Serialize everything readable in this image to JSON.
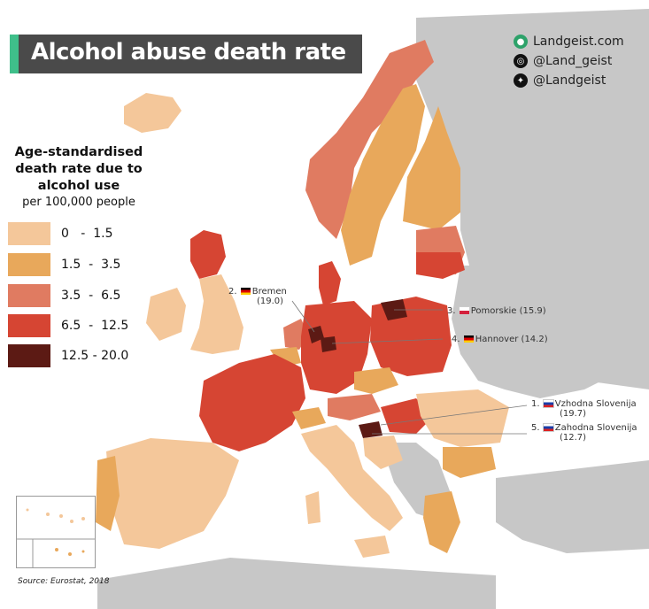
{
  "title": "Alcohol abuse death rate",
  "branding": {
    "website": "Landgeist.com",
    "instagram": "@Land_geist",
    "twitter": "@Landgeist",
    "icons": [
      "globe-icon",
      "instagram-icon",
      "twitter-icon"
    ]
  },
  "legend": {
    "title": "Age-standardised death rate due to alcohol use",
    "subtitle": "per 100,000 people",
    "bins": [
      {
        "label": "0   -  1.5",
        "color": "#f4c79a"
      },
      {
        "label": "1.5  -  3.5",
        "color": "#e8a85b"
      },
      {
        "label": "3.5  -  6.5",
        "color": "#e07b61"
      },
      {
        "label": "6.5  -  12.5",
        "color": "#d64533"
      },
      {
        "label": "12.5 - 20.0",
        "color": "#5c1a14"
      }
    ]
  },
  "annotations": [
    {
      "rank": "2.",
      "name": "Bremen",
      "value": "(19.0)",
      "flag": "de"
    },
    {
      "rank": "3.",
      "name": "Pomorskie",
      "value": "(15.9)",
      "flag": "pl"
    },
    {
      "rank": "4.",
      "name": "Hannover",
      "value": "(14.2)",
      "flag": "de"
    },
    {
      "rank": "1.",
      "name": "Vzhodna Slovenija",
      "value": "(19.7)",
      "flag": "si"
    },
    {
      "rank": "5.",
      "name": "Zahodna Slovenija",
      "value": "(12.7)",
      "flag": "si"
    }
  ],
  "source": "Source: Eurostat, 2018",
  "colors": {
    "sea": "#ffffff",
    "no_data": "#c7c7c7",
    "title_bg": "#4a4a4a",
    "title_accent": "#3fbf8a"
  }
}
